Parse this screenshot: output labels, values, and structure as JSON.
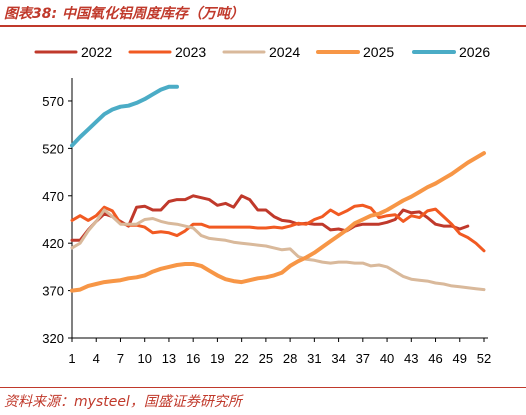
{
  "header": {
    "title": "图表38:  中国氧化铝周度库存（万吨）"
  },
  "footer": {
    "source": "资料来源：mysteel，国盛证券研究所"
  },
  "colors": {
    "accent": "#c0392b",
    "axis": "#000000"
  },
  "chart_data": {
    "type": "line",
    "title": "图表38:  中国氧化铝周度库存（万吨）",
    "xlabel": "",
    "ylabel": "",
    "x_ticks": [
      1,
      4,
      7,
      10,
      13,
      16,
      19,
      22,
      25,
      28,
      31,
      34,
      37,
      40,
      43,
      46,
      49,
      52
    ],
    "y_ticks": [
      320,
      370,
      420,
      470,
      520,
      570
    ],
    "xlim": [
      1,
      52
    ],
    "ylim": [
      320,
      590
    ],
    "grid": false,
    "legend_position": "top",
    "series": [
      {
        "name": "2022",
        "color": "#c0392b",
        "x": [
          1,
          2,
          3,
          4,
          5,
          6,
          7,
          8,
          9,
          10,
          11,
          12,
          13,
          14,
          15,
          16,
          17,
          18,
          19,
          20,
          21,
          22,
          23,
          24,
          25,
          26,
          27,
          28,
          29,
          30,
          31,
          32,
          33,
          34,
          35,
          36,
          37,
          38,
          39,
          40,
          41,
          42,
          43,
          44,
          45,
          46,
          47,
          48,
          49,
          50
        ],
        "values": [
          423,
          423,
          434,
          443,
          451,
          448,
          443,
          438,
          458,
          459,
          455,
          455,
          464,
          466,
          466,
          470,
          468,
          466,
          460,
          462,
          458,
          470,
          466,
          455,
          455,
          448,
          444,
          443,
          440,
          441,
          440,
          440,
          434,
          435,
          433,
          438,
          440,
          440,
          440,
          442,
          445,
          455,
          452,
          453,
          447,
          440,
          438,
          438,
          435,
          438
        ]
      },
      {
        "name": "2023",
        "color": "#f15a22",
        "x": [
          1,
          2,
          3,
          4,
          5,
          6,
          7,
          8,
          9,
          10,
          11,
          12,
          13,
          14,
          15,
          16,
          17,
          18,
          19,
          20,
          21,
          22,
          23,
          24,
          25,
          26,
          27,
          28,
          29,
          30,
          31,
          32,
          33,
          34,
          35,
          36,
          37,
          38,
          39,
          40,
          41,
          42,
          43,
          44,
          45,
          46,
          47,
          48,
          49,
          50,
          51,
          52
        ],
        "values": [
          444,
          449,
          444,
          449,
          458,
          454,
          441,
          439,
          439,
          437,
          431,
          432,
          431,
          428,
          433,
          440,
          440,
          437,
          437,
          437,
          437,
          437,
          437,
          436,
          436,
          437,
          436,
          438,
          441,
          440,
          445,
          448,
          455,
          450,
          454,
          459,
          460,
          457,
          447,
          449,
          450,
          443,
          449,
          447,
          454,
          456,
          448,
          440,
          430,
          426,
          420,
          412
        ]
      },
      {
        "name": "2024",
        "color": "#d9b99b",
        "x": [
          1,
          2,
          3,
          4,
          5,
          6,
          7,
          8,
          9,
          10,
          11,
          12,
          13,
          14,
          15,
          16,
          17,
          18,
          19,
          20,
          21,
          22,
          23,
          24,
          25,
          26,
          27,
          28,
          29,
          30,
          31,
          32,
          33,
          34,
          35,
          36,
          37,
          38,
          39,
          40,
          41,
          42,
          43,
          44,
          45,
          46,
          47,
          48,
          49,
          50,
          51,
          52
        ],
        "values": [
          415,
          420,
          433,
          443,
          455,
          448,
          440,
          440,
          440,
          445,
          446,
          443,
          441,
          440,
          438,
          436,
          428,
          425,
          424,
          423,
          421,
          420,
          419,
          418,
          417,
          415,
          413,
          414,
          406,
          403,
          402,
          400,
          399,
          400,
          400,
          399,
          399,
          396,
          397,
          395,
          390,
          385,
          382,
          381,
          380,
          378,
          377,
          375,
          374,
          373,
          372,
          371
        ]
      },
      {
        "name": "2025",
        "color": "#f79646",
        "x": [
          1,
          2,
          3,
          4,
          5,
          6,
          7,
          8,
          9,
          10,
          11,
          12,
          13,
          14,
          15,
          16,
          17,
          18,
          19,
          20,
          21,
          22,
          23,
          24,
          25,
          26,
          27,
          28,
          29,
          30,
          31,
          32,
          33,
          34,
          35,
          36,
          37,
          38,
          39,
          40,
          41,
          42,
          43,
          44,
          45,
          46,
          47,
          48,
          49,
          50,
          51,
          52
        ],
        "values": [
          370,
          371,
          375,
          377,
          379,
          380,
          381,
          383,
          384,
          386,
          390,
          393,
          395,
          397,
          398,
          398,
          396,
          391,
          386,
          382,
          380,
          379,
          381,
          383,
          384,
          386,
          389,
          396,
          401,
          405,
          410,
          416,
          422,
          428,
          434,
          441,
          445,
          449,
          451,
          455,
          460,
          465,
          469,
          474,
          479,
          483,
          488,
          493,
          499,
          505,
          510,
          515
        ]
      },
      {
        "name": "2026",
        "color": "#4bacc6",
        "x": [
          1,
          2,
          3,
          4,
          5,
          6,
          7,
          8,
          9,
          10,
          11,
          12,
          13,
          14
        ],
        "values": [
          523,
          532,
          540,
          548,
          556,
          561,
          564,
          565,
          568,
          572,
          577,
          582,
          585,
          585
        ]
      }
    ]
  }
}
